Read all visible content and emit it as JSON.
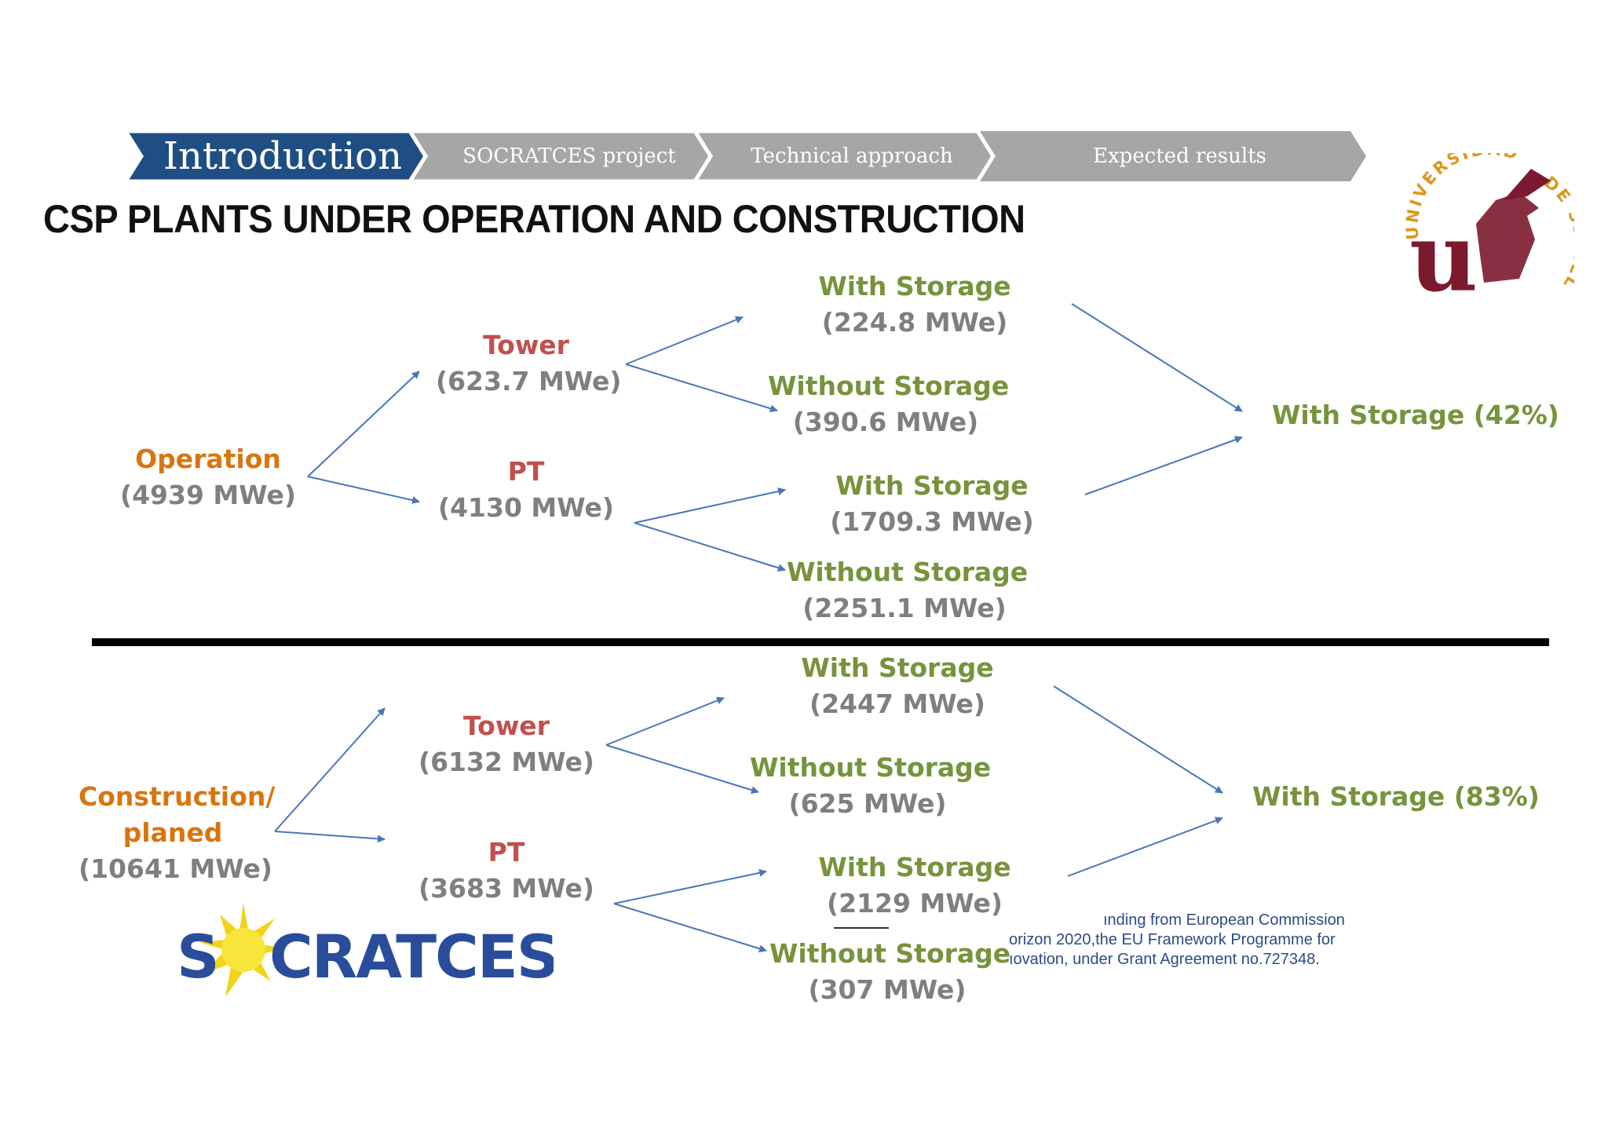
{
  "nav": {
    "steps": [
      {
        "label": "Introduction",
        "active": true
      },
      {
        "label": "SOCRATCES project",
        "active": false
      },
      {
        "label": "Technical approach",
        "active": false
      },
      {
        "label": "Expected results",
        "active": false
      }
    ],
    "active_color": "#1f4e84",
    "inactive_color": "#a6a6a6"
  },
  "title": "CSP PLANTS UNDER OPERATION AND CONSTRUCTION",
  "university_logo": {
    "letter": "u",
    "ring_text": "UNIVERSIDAD DE SEVILLA",
    "color": "#7b1a2e",
    "ring_color": "#d89a1c"
  },
  "colors": {
    "orange": "#d9750f",
    "red": "#c0504d",
    "green": "#77933c",
    "grey": "#7f7f7f",
    "arrow": "#4a76b8"
  },
  "operation": {
    "root": {
      "label": "Operation",
      "value": "(4939 MWe)"
    },
    "tower": {
      "label": "Tower",
      "value": "(623.7 MWe)"
    },
    "pt": {
      "label": "PT",
      "value": "(4130 MWe)"
    },
    "tower_with": {
      "label": "With Storage",
      "value": "(224.8 MWe)"
    },
    "tower_without": {
      "label": "Without Storage",
      "value": "(390.6 MWe)"
    },
    "pt_with": {
      "label": "With Storage",
      "value": "(1709.3 MWe)"
    },
    "pt_without": {
      "label": "Without Storage",
      "value": "(2251.1 MWe)"
    },
    "summary": "With Storage (42%)"
  },
  "construction": {
    "root": {
      "label_line1": "Construction/",
      "label_line2": "planed",
      "value": "(10641 MWe)"
    },
    "tower": {
      "label": "Tower",
      "value": "(6132 MWe)"
    },
    "pt": {
      "label": "PT",
      "value": "(3683 MWe)"
    },
    "tower_with": {
      "label": "With Storage",
      "value": "(2447 MWe)"
    },
    "tower_without": {
      "label": "Without Storage",
      "value": "(625 MWe)"
    },
    "pt_with": {
      "label": "With Storage",
      "value": "(2129 MWe)"
    },
    "pt_without": {
      "label": "Without Storage",
      "value": "(307 MWe)"
    },
    "summary": "With Storage (83%)"
  },
  "socratces_logo": {
    "text": "SOCRATCES"
  },
  "funding": {
    "lines": [
      "ınding from European Commission",
      "orizon 2020,the EU Framework Programme for",
      "ıovation, under Grant Agreement no.727348."
    ]
  }
}
